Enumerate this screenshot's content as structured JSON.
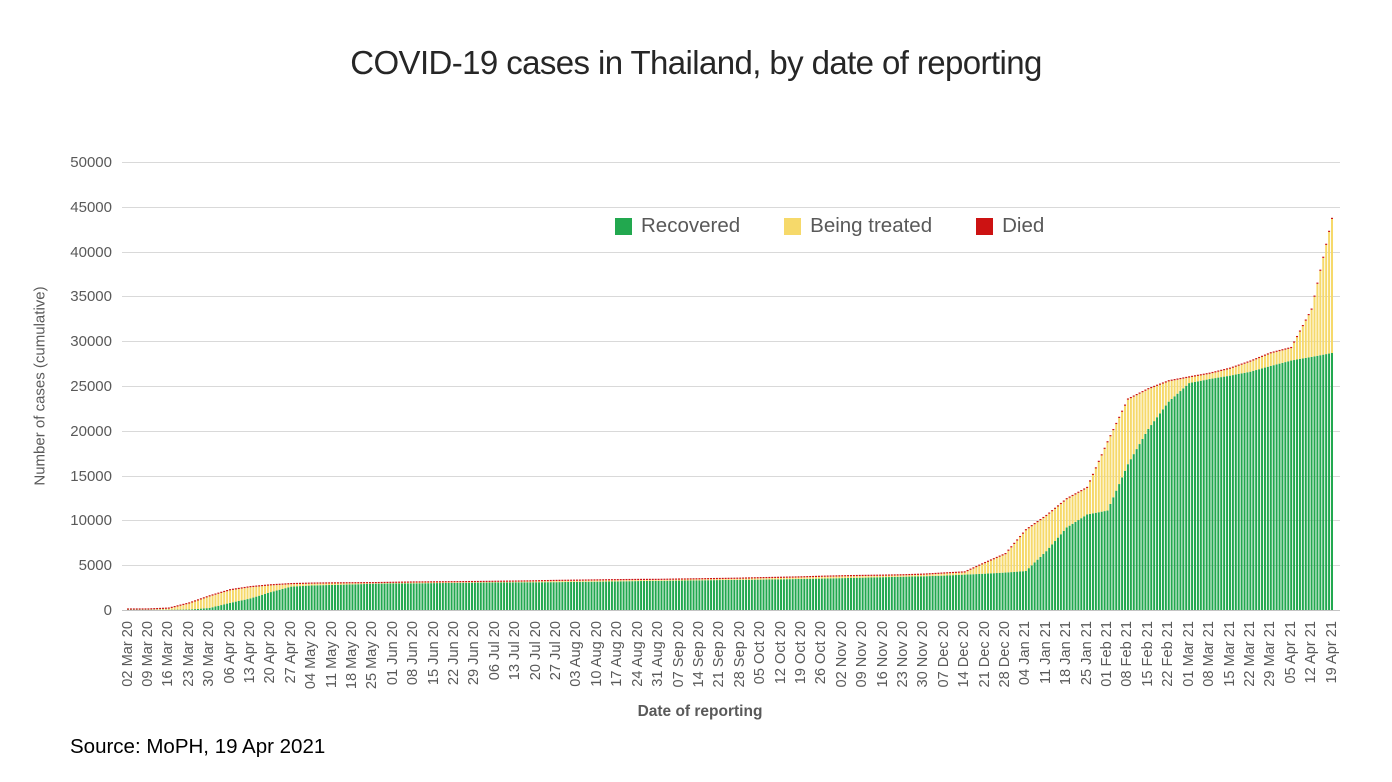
{
  "title": "COVID-19 cases in Thailand, by date of reporting",
  "source_note": "Source: MoPH, 19 Apr 2021",
  "colors": {
    "recovered_green": "#22a84f",
    "treated_yellow": "#f6d96a",
    "died_red": "#cc1212",
    "gridline": "#d9d9d9",
    "axis_line": "#c4c4c4",
    "axis_text": "#595959",
    "title_text": "#262626"
  },
  "chart_data": {
    "type": "bar",
    "stacked": true,
    "bar_frequency": "daily",
    "interpolation": "daily bars linearly interpolated between weekly labelled values",
    "title": "COVID-19 cases in Thailand, by date of reporting",
    "xlabel": "Date of reporting",
    "ylabel": "Number of cases (cumulative)",
    "ylim": [
      0,
      50000
    ],
    "yticks": [
      0,
      5000,
      10000,
      15000,
      20000,
      25000,
      30000,
      35000,
      40000,
      45000,
      50000
    ],
    "grid": "horizontal",
    "legend_position": "top-center-inside",
    "categories": [
      "02 Mar 20",
      "09 Mar 20",
      "16 Mar 20",
      "23 Mar 20",
      "30 Mar 20",
      "06 Apr 20",
      "13 Apr 20",
      "20 Apr 20",
      "27 Apr 20",
      "04 May 20",
      "11 May 20",
      "18 May 20",
      "25 May 20",
      "01 Jun 20",
      "08 Jun 20",
      "15 Jun 20",
      "22 Jun 20",
      "29 Jun 20",
      "06 Jul 20",
      "13 Jul 20",
      "20 Jul 20",
      "27 Jul 20",
      "03 Aug 20",
      "10 Aug 20",
      "17 Aug 20",
      "24 Aug 20",
      "31 Aug 20",
      "07 Sep 20",
      "14 Sep 20",
      "21 Sep 20",
      "28 Sep 20",
      "05 Oct 20",
      "12 Oct 20",
      "19 Oct 20",
      "26 Oct 20",
      "02 Nov 20",
      "09 Nov 20",
      "16 Nov 20",
      "23 Nov 20",
      "30 Nov 20",
      "07 Dec 20",
      "14 Dec 20",
      "21 Dec 20",
      "28 Dec 20",
      "04 Jan 21",
      "11 Jan 21",
      "18 Jan 21",
      "25 Jan 21",
      "01 Feb 21",
      "08 Feb 21",
      "15 Feb 21",
      "22 Feb 21",
      "01 Mar 21",
      "08 Mar 21",
      "15 Mar 21",
      "22 Mar 21",
      "29 Mar 21",
      "05 Apr 21",
      "12 Apr 21",
      "19 Apr 21"
    ],
    "series": [
      {
        "name": "Recovered",
        "color": "#22a84f",
        "values": [
          31,
          33,
          35,
          52,
          229,
          793,
          1288,
          1999,
          2609,
          2740,
          2796,
          2857,
          2928,
          2963,
          2973,
          3002,
          3022,
          3053,
          3072,
          3090,
          3096,
          3109,
          3142,
          3160,
          3194,
          3229,
          3252,
          3281,
          3312,
          3343,
          3369,
          3390,
          3424,
          3468,
          3504,
          3558,
          3606,
          3662,
          3714,
          3764,
          3837,
          3949,
          4053,
          4180,
          4352,
          6566,
          9206,
          10662,
          11100,
          16273,
          20208,
          23253,
          25324,
          25777,
          26153,
          26598,
          27239,
          27840,
          28248,
          28683
        ]
      },
      {
        "name": "Being treated",
        "color": "#f6d96a",
        "values": [
          11,
          16,
          111,
          668,
          1286,
          1401,
          1251,
          746,
          270,
          193,
          163,
          118,
          57,
          61,
          88,
          75,
          71,
          58,
          65,
          72,
          96,
          128,
          120,
          133,
          126,
          115,
          101,
          106,
          105,
          109,
          117,
          151,
          160,
          164,
          196,
          193,
          187,
          158,
          152,
          173,
          229,
          237,
          1176,
          2045,
          4538,
          3914,
          3147,
          2950,
          7605,
          7205,
          4424,
          2263,
          624,
          579,
          765,
          1115,
          1401,
          1386,
          5265,
          14955
        ]
      },
      {
        "name": "Died",
        "color": "#cc1212",
        "values": [
          1,
          1,
          1,
          1,
          9,
          26,
          40,
          47,
          52,
          54,
          56,
          56,
          57,
          57,
          58,
          58,
          58,
          58,
          58,
          58,
          58,
          58,
          58,
          58,
          58,
          58,
          58,
          58,
          58,
          59,
          59,
          59,
          59,
          59,
          59,
          59,
          59,
          60,
          60,
          60,
          60,
          60,
          60,
          60,
          65,
          67,
          70,
          75,
          77,
          79,
          82,
          83,
          83,
          85,
          87,
          90,
          94,
          95,
          97,
          104
        ]
      }
    ]
  }
}
